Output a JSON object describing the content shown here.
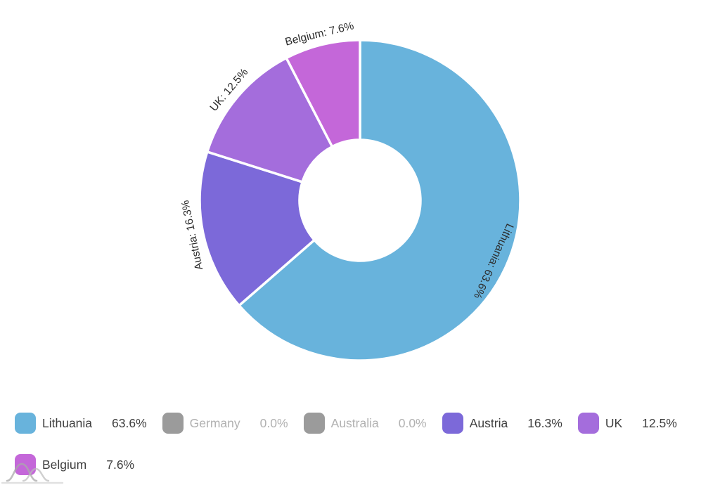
{
  "page": {
    "background": "#ffffff"
  },
  "chart_data": {
    "type": "pie",
    "variant": "donut",
    "title": "",
    "legend_position": "bottom",
    "start_angle_deg": 0,
    "direction": "clockwise",
    "categories": [
      "Lithuania",
      "Germany",
      "Australia",
      "Austria",
      "UK",
      "Belgium"
    ],
    "values": [
      63.6,
      0.0,
      0.0,
      16.3,
      12.5,
      7.6
    ],
    "colors": [
      "#68b3dc",
      "#9b9b9b",
      "#9b9b9b",
      "#7c69d9",
      "#a46ddc",
      "#c467d9"
    ],
    "slice_labels": [
      "Lithuania: 63.6%",
      "",
      "",
      "Austria: 16.3%",
      "UK: 12.5%",
      "Belgium: 7.6%"
    ],
    "legend": [
      {
        "label": "Lithuania",
        "value": "63.6%",
        "active": true,
        "color": "#68b3dc"
      },
      {
        "label": "Germany",
        "value": "0.0%",
        "active": false,
        "color": "#9b9b9b"
      },
      {
        "label": "Australia",
        "value": "0.0%",
        "active": false,
        "color": "#9b9b9b"
      },
      {
        "label": "Austria",
        "value": "16.3%",
        "active": true,
        "color": "#7c69d9"
      },
      {
        "label": "UK",
        "value": "12.5%",
        "active": true,
        "color": "#a46ddc"
      },
      {
        "label": "Belgium",
        "value": "7.6%",
        "active": true,
        "color": "#c467d9"
      }
    ]
  },
  "colors": {
    "active_text": "#3f3f3f",
    "inactive_text": "#b1b1b1",
    "slice_label_text": "#2d2d2d",
    "slice_separator": "#ffffff",
    "watermark_stroke": "#aaaaaa"
  },
  "watermark": {
    "icon": "amcharts-logo"
  }
}
